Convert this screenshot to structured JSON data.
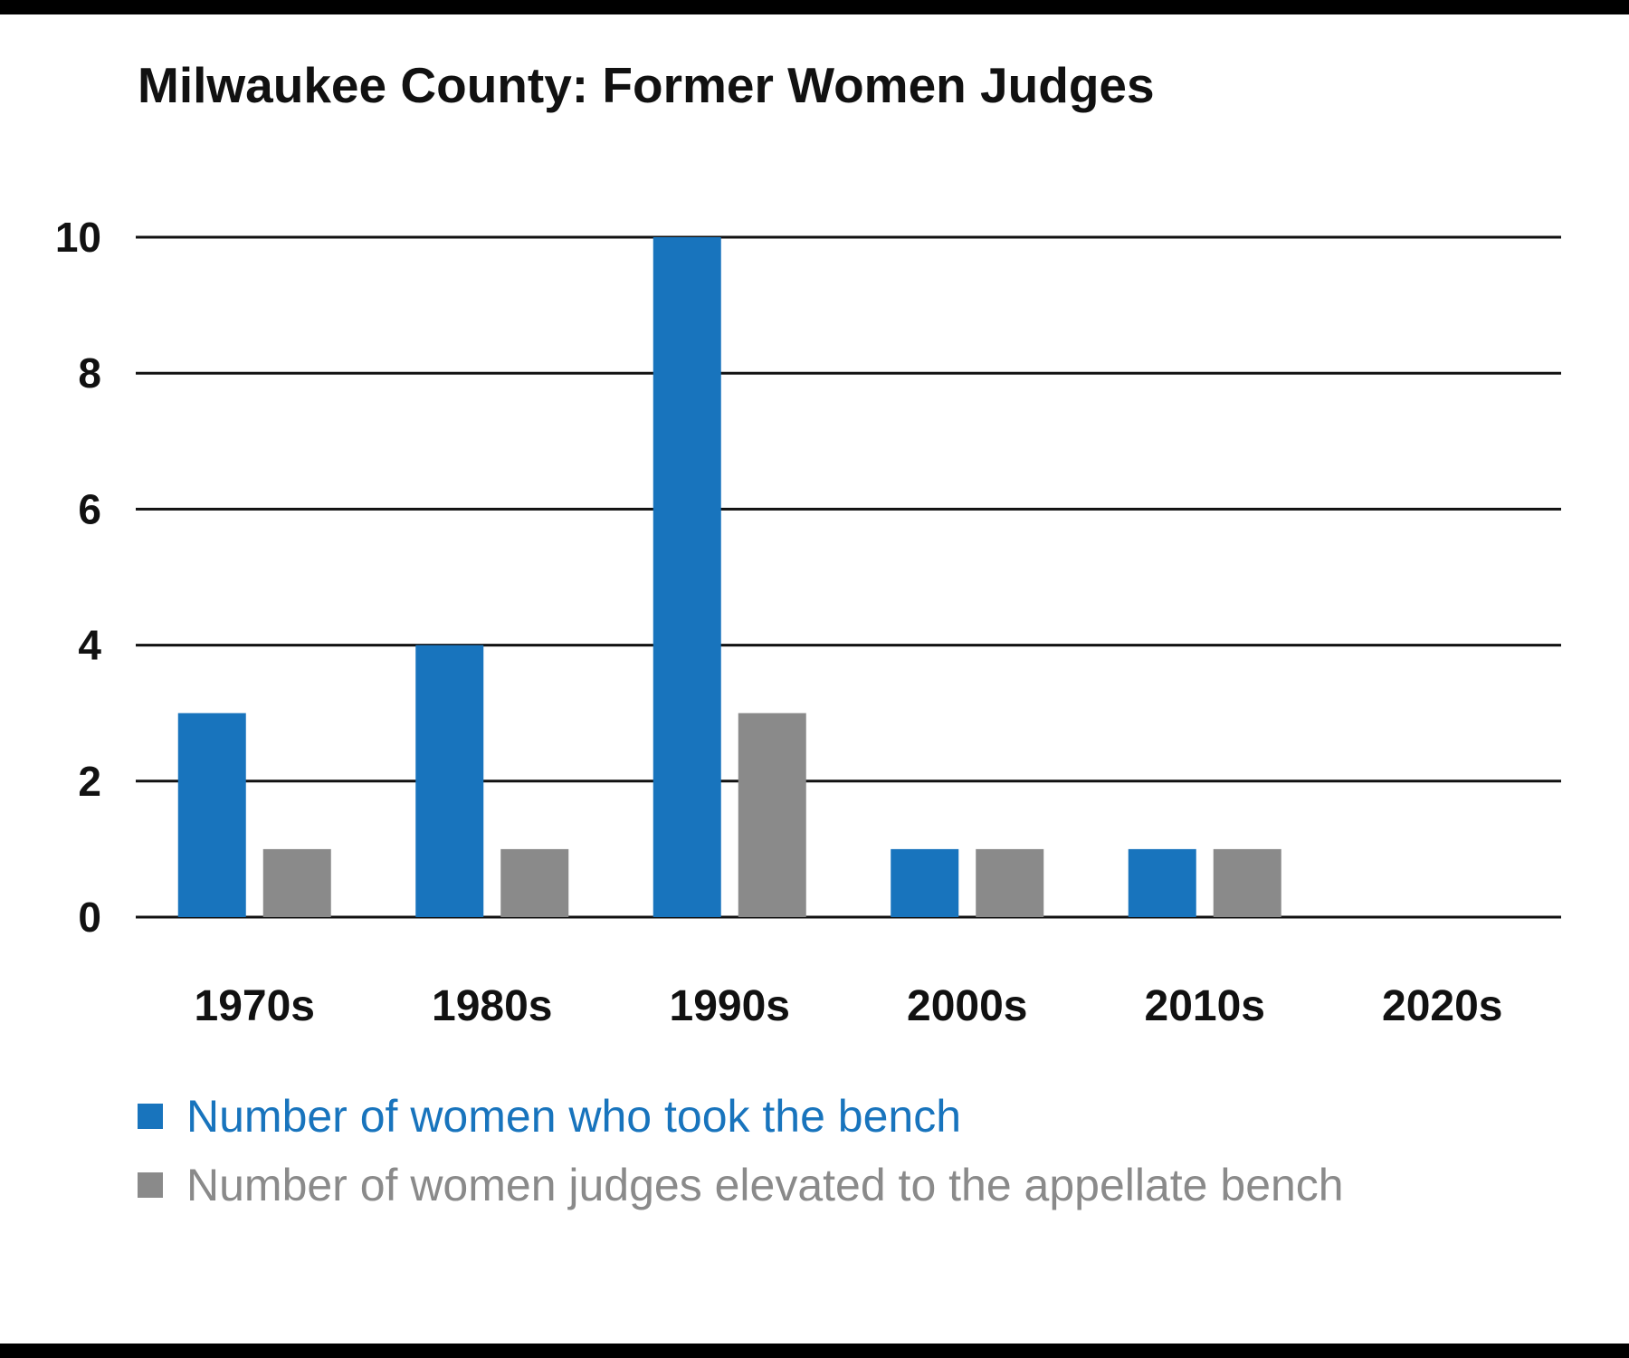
{
  "chart_data": {
    "type": "bar",
    "title": "Milwaukee County: Former Women Judges",
    "categories": [
      "1970s",
      "1980s",
      "1990s",
      "2000s",
      "2010s",
      "2020s"
    ],
    "series": [
      {
        "name": "Number of women who took the bench",
        "color": "#1874BD",
        "values": [
          3,
          4,
          10,
          1,
          1,
          0
        ]
      },
      {
        "name": "Number of women judges elevated to the appellate bench",
        "color": "#8A8A8A",
        "values": [
          1,
          1,
          3,
          1,
          1,
          0
        ]
      }
    ],
    "y_ticks": [
      0,
      2,
      4,
      6,
      8,
      10
    ],
    "ylim": [
      0,
      10
    ],
    "xlabel": "",
    "ylabel": "",
    "grid": true,
    "legend_placement": "bottom-left"
  }
}
